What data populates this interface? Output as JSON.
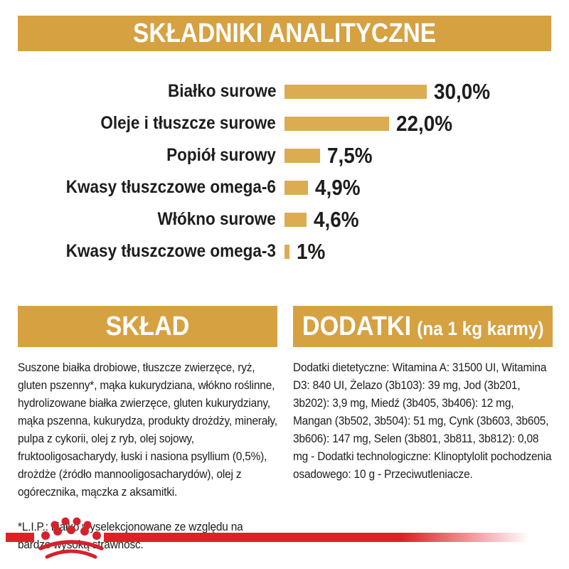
{
  "colors": {
    "gold_header": "#D6A141",
    "gold_bar": "#DCAC52",
    "text_dark": "#1D1D1B",
    "white": "#FFFFFF",
    "stripe_red": "#E02027",
    "crown_red": "#D2232D"
  },
  "header": {
    "title": "SKŁADNIKI ANALITYCZNE"
  },
  "chart_data": {
    "type": "bar",
    "orientation": "horizontal",
    "title": "SKŁADNIKI ANALITYCZNE",
    "categories": [
      "Białko surowe",
      "Oleje i tłuszcze surowe",
      "Popiół surowy",
      "Kwasy tłuszczowe omega-6",
      "Włókno surowe",
      "Kwasy tłuszczowe omega-3"
    ],
    "values": [
      30.0,
      22.0,
      7.5,
      4.9,
      4.6,
      1.0
    ],
    "value_labels": [
      "30,0%",
      "22,0%",
      "7,5%",
      "4,9%",
      "4,6%",
      "1%"
    ],
    "unit": "%",
    "xlim": [
      0,
      30
    ],
    "grid": false,
    "bar_color": "#DCAC52",
    "legend": "none"
  },
  "sklad": {
    "title": "SKŁAD",
    "body": "Suszone białka drobiowe, tłuszcze zwierzęce, ryż, gluten pszenny*, mąka kukurydziana, włókno roślinne, hydrolizowane białka zwierzęce, gluten kukurydziany, mąka pszenna, kukurydza, produkty drożdży, minerały, pulpa z cykorii, olej z ryb, olej sojowy, fruktooligosacharydy, łuski i nasiona psyllium (0,5%), drożdże (źródło mannooligosacharydów), olej z ogórecznika, mączka z aksamitki.",
    "footnote": "*L.I.P.: białko wyselekcjonowane ze względu na bardzo wysoką strawność."
  },
  "dodatki": {
    "title": "DODATKI",
    "title_suffix": "(na 1 kg karmy)",
    "body": "Dodatki dietetyczne: Witamina A: 31500 UI, Witamina D3: 840 UI, Żelazo (3b103): 39 mg, Jod (3b201, 3b202): 3,9 mg, Miedź (3b405, 3b406): 12 mg, Mangan (3b502, 3b504): 51 mg, Cynk (3b603, 3b605, 3b606): 147 mg, Selen (3b801, 3b811, 3b812): 0,08 mg - Dodatki technologiczne: Klinoptylolit pochodzenia osadowego: 10 g - Przeciwutleniacze.",
    "footer_logo": "royal-canin-crown"
  }
}
